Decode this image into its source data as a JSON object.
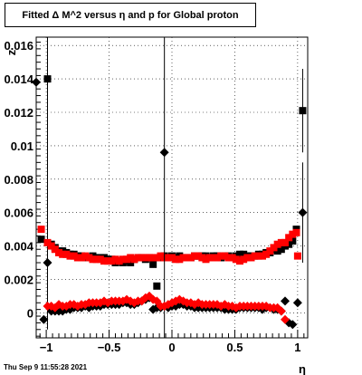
{
  "title": "Fitted Δ M^2 versus η and p for Global proton",
  "footer": "Thu Sep  9 11:55:28 2021",
  "chart_data": {
    "type": "scatter",
    "title": "Fitted Δ M^2 versus η and p for Global proton",
    "xlabel": "η",
    "ylabel": "z",
    "xlim": [
      -1.08,
      1.08
    ],
    "ylim": [
      -0.0015,
      0.0165
    ],
    "grid": true,
    "x_ticks": [
      -1,
      -0.5,
      0,
      0.5,
      1
    ],
    "x_tick_labels": [
      "−1",
      "−0.5",
      "0",
      "0.5",
      "1"
    ],
    "y_ticks": [
      0,
      0.002,
      0.004,
      0.006,
      0.008,
      0.01,
      0.012,
      0.014,
      0.016
    ],
    "y_tick_labels": [
      "0",
      "0.002",
      "0.004",
      "0.006",
      "0.008",
      "0.01",
      "0.012",
      "0.014",
      "0.016"
    ],
    "series": [
      {
        "marker": "square",
        "color": "#000000",
        "x": [
          -1.04,
          -0.99,
          -0.96,
          -0.93,
          -0.9,
          -0.87,
          -0.84,
          -0.81,
          -0.78,
          -0.75,
          -0.72,
          -0.69,
          -0.66,
          -0.63,
          -0.6,
          -0.57,
          -0.54,
          -0.51,
          -0.48,
          -0.45,
          -0.42,
          -0.39,
          -0.36,
          -0.33,
          -0.3,
          -0.27,
          -0.24,
          -0.21,
          -0.18,
          -0.15,
          -0.12,
          -0.09,
          -0.06,
          -0.03,
          0.0,
          0.03,
          0.06,
          0.09,
          0.12,
          0.15,
          0.18,
          0.21,
          0.24,
          0.27,
          0.3,
          0.33,
          0.36,
          0.39,
          0.42,
          0.45,
          0.48,
          0.51,
          0.54,
          0.57,
          0.6,
          0.63,
          0.66,
          0.69,
          0.72,
          0.75,
          0.78,
          0.81,
          0.84,
          0.87,
          0.9,
          0.93,
          0.96,
          0.99,
          1.04
        ],
        "y": [
          0.0044,
          0.014,
          0.0041,
          0.0039,
          0.0037,
          0.0037,
          0.0036,
          0.0035,
          0.0035,
          0.0034,
          0.0034,
          0.0033,
          0.0033,
          0.0034,
          0.0033,
          0.0033,
          0.0033,
          0.0032,
          0.0032,
          0.003,
          0.0031,
          0.003,
          0.0031,
          0.003,
          0.0032,
          0.0033,
          0.0033,
          0.0032,
          0.0033,
          0.0029,
          0.0016,
          0.0033,
          0.0034,
          0.0033,
          0.0034,
          0.0033,
          0.0034,
          0.0033,
          0.0033,
          0.0033,
          0.0034,
          0.0034,
          0.0034,
          0.0034,
          0.0033,
          0.0034,
          0.0034,
          0.0033,
          0.0034,
          0.0034,
          0.0033,
          0.0034,
          0.0035,
          0.0035,
          0.0034,
          0.0034,
          0.0034,
          0.0035,
          0.0035,
          0.0036,
          0.0036,
          0.0038,
          0.0037,
          0.0038,
          0.004,
          0.0041,
          0.0043,
          0.005,
          0.0121
        ],
        "yerr": [
          0.0002,
          0.015,
          0.0002,
          0.0002,
          0.0002,
          0.0002,
          0.0002,
          0.0002,
          0.0002,
          0.0002,
          0.0002,
          0.0002,
          0.0002,
          0.0002,
          0.0002,
          0.0002,
          0.0002,
          0.0002,
          0.0002,
          0.0002,
          0.0002,
          0.0002,
          0.0002,
          0.0002,
          0.0002,
          0.0002,
          0.0002,
          0.0002,
          0.0002,
          0.0002,
          0.0002,
          0.0002,
          0.0002,
          0.0002,
          0.0002,
          0.0002,
          0.0002,
          0.0002,
          0.0002,
          0.0002,
          0.0002,
          0.0002,
          0.0002,
          0.0002,
          0.0002,
          0.0002,
          0.0002,
          0.0002,
          0.0002,
          0.0002,
          0.0002,
          0.0002,
          0.0002,
          0.0002,
          0.0002,
          0.0002,
          0.0002,
          0.0002,
          0.0002,
          0.0002,
          0.0002,
          0.0002,
          0.0002,
          0.0002,
          0.0002,
          0.0002,
          0.0002,
          0.0002,
          0.0025
        ]
      },
      {
        "marker": "square",
        "color": "#ff0000",
        "x": [
          -1.04,
          -0.99,
          -0.96,
          -0.93,
          -0.9,
          -0.87,
          -0.84,
          -0.81,
          -0.78,
          -0.75,
          -0.72,
          -0.69,
          -0.66,
          -0.63,
          -0.6,
          -0.57,
          -0.54,
          -0.51,
          -0.48,
          -0.45,
          -0.42,
          -0.39,
          -0.36,
          -0.33,
          -0.3,
          -0.27,
          -0.24,
          -0.21,
          -0.18,
          -0.15,
          -0.12,
          -0.09,
          -0.06,
          -0.03,
          0.0,
          0.03,
          0.06,
          0.09,
          0.12,
          0.15,
          0.18,
          0.21,
          0.24,
          0.27,
          0.3,
          0.33,
          0.36,
          0.39,
          0.42,
          0.45,
          0.48,
          0.51,
          0.54,
          0.57,
          0.6,
          0.63,
          0.66,
          0.69,
          0.72,
          0.75,
          0.78,
          0.81,
          0.84,
          0.87,
          0.9,
          0.93,
          0.96,
          0.99,
          1.0
        ],
        "y": [
          0.005,
          0.0042,
          0.004,
          0.0038,
          0.0036,
          0.0035,
          0.0035,
          0.0034,
          0.0034,
          0.0033,
          0.0033,
          0.0034,
          0.0033,
          0.0032,
          0.0032,
          0.0032,
          0.0031,
          0.0031,
          0.0031,
          0.0032,
          0.0031,
          0.0032,
          0.0032,
          0.0033,
          0.0032,
          0.0033,
          0.0033,
          0.0033,
          0.0033,
          0.0033,
          0.0033,
          0.0034,
          0.0033,
          0.0033,
          0.0033,
          0.0032,
          0.0032,
          0.0033,
          0.0033,
          0.0033,
          0.0034,
          0.0034,
          0.0033,
          0.0032,
          0.0033,
          0.0033,
          0.0033,
          0.0034,
          0.0034,
          0.0033,
          0.0033,
          0.0032,
          0.0031,
          0.0032,
          0.0033,
          0.0033,
          0.0034,
          0.0034,
          0.0034,
          0.0035,
          0.0037,
          0.0039,
          0.0041,
          0.0042,
          0.0042,
          0.0045,
          0.0047,
          0.0048,
          0.0034
        ],
        "yerr": [
          0.0002,
          0.0002,
          0.0002,
          0.0002,
          0.0002,
          0.0002,
          0.0002,
          0.0002,
          0.0002,
          0.0002,
          0.0002,
          0.0002,
          0.0002,
          0.0002,
          0.0002,
          0.0002,
          0.0002,
          0.0002,
          0.0002,
          0.0002,
          0.0002,
          0.0002,
          0.0002,
          0.0002,
          0.0002,
          0.0002,
          0.0002,
          0.0002,
          0.0002,
          0.0002,
          0.0002,
          0.0002,
          0.0002,
          0.0002,
          0.0002,
          0.0002,
          0.0002,
          0.0002,
          0.0002,
          0.0002,
          0.0002,
          0.0002,
          0.0002,
          0.0002,
          0.0002,
          0.0002,
          0.0002,
          0.0002,
          0.0002,
          0.0002,
          0.0002,
          0.0002,
          0.0002,
          0.0002,
          0.0002,
          0.0002,
          0.0002,
          0.0002,
          0.0002,
          0.0002,
          0.0002,
          0.0002,
          0.0002,
          0.0002,
          0.0002,
          0.0002,
          0.0002,
          0.0002,
          0.0002
        ]
      },
      {
        "marker": "diamond",
        "color": "#000000",
        "x": [
          -1.08,
          -1.02,
          -0.99,
          -0.96,
          -0.93,
          -0.9,
          -0.87,
          -0.84,
          -0.81,
          -0.78,
          -0.75,
          -0.72,
          -0.69,
          -0.66,
          -0.63,
          -0.6,
          -0.57,
          -0.54,
          -0.51,
          -0.48,
          -0.45,
          -0.42,
          -0.39,
          -0.36,
          -0.33,
          -0.3,
          -0.27,
          -0.24,
          -0.21,
          -0.18,
          -0.15,
          -0.12,
          -0.09,
          -0.06,
          -0.03,
          0.0,
          0.03,
          0.06,
          0.09,
          0.12,
          0.15,
          0.18,
          0.21,
          0.24,
          0.27,
          0.3,
          0.33,
          0.36,
          0.39,
          0.42,
          0.45,
          0.48,
          0.51,
          0.54,
          0.57,
          0.6,
          0.63,
          0.66,
          0.69,
          0.72,
          0.75,
          0.78,
          0.81,
          0.84,
          0.87,
          0.9,
          0.93,
          0.96,
          1.0,
          1.04
        ],
        "y": [
          0.0138,
          -0.0004,
          0.003,
          0.0001,
          0.0001,
          0.0001,
          0.0001,
          0.0002,
          0.0002,
          0.0003,
          0.0003,
          0.0003,
          0.0004,
          0.0003,
          0.0004,
          0.0004,
          0.0004,
          0.0005,
          0.0005,
          0.0005,
          0.0005,
          0.0005,
          0.0006,
          0.0006,
          0.0005,
          0.0005,
          0.0006,
          0.0007,
          0.0008,
          0.0009,
          0.0002,
          0.0003,
          0.0003,
          0.0096,
          0.0003,
          0.0004,
          0.0004,
          0.0005,
          0.0005,
          0.0004,
          0.0004,
          0.0003,
          0.0003,
          0.0003,
          0.0003,
          0.0003,
          0.0003,
          0.0003,
          0.0003,
          0.0002,
          0.0002,
          0.0002,
          0.0002,
          0.0003,
          0.0003,
          0.0003,
          0.0003,
          0.0003,
          0.0003,
          0.0002,
          0.0003,
          0.0003,
          0.0002,
          0.0002,
          0.0001,
          0.0007,
          -0.0006,
          -0.0007,
          0.0006,
          0.006
        ],
        "yerr": [
          0.0008,
          0.0002,
          0.0002,
          0.0002,
          0.0002,
          0.0002,
          0.0002,
          0.0002,
          0.0002,
          0.0002,
          0.0002,
          0.0002,
          0.0002,
          0.0002,
          0.0002,
          0.0002,
          0.0002,
          0.0002,
          0.0002,
          0.0002,
          0.0002,
          0.0002,
          0.0002,
          0.0002,
          0.0002,
          0.0002,
          0.0002,
          0.0002,
          0.0002,
          0.0002,
          0.0002,
          0.0002,
          0.0002,
          0.017,
          0.0002,
          0.0002,
          0.0002,
          0.0002,
          0.0002,
          0.0002,
          0.0002,
          0.0002,
          0.0002,
          0.0002,
          0.0002,
          0.0002,
          0.0002,
          0.0002,
          0.0002,
          0.0002,
          0.0002,
          0.0002,
          0.0002,
          0.0002,
          0.0002,
          0.0002,
          0.0002,
          0.0002,
          0.0002,
          0.0002,
          0.0002,
          0.0002,
          0.0002,
          0.0002,
          0.0002,
          0.0002,
          0.0002,
          0.0002,
          0.0002,
          0.003
        ]
      },
      {
        "marker": "diamond",
        "color": "#ff0000",
        "x": [
          -0.99,
          -0.96,
          -0.93,
          -0.9,
          -0.87,
          -0.84,
          -0.81,
          -0.78,
          -0.75,
          -0.72,
          -0.69,
          -0.66,
          -0.63,
          -0.6,
          -0.57,
          -0.54,
          -0.51,
          -0.48,
          -0.45,
          -0.42,
          -0.39,
          -0.36,
          -0.33,
          -0.3,
          -0.27,
          -0.24,
          -0.21,
          -0.18,
          -0.15,
          -0.12,
          -0.09,
          -0.06,
          -0.03,
          0.0,
          0.03,
          0.06,
          0.09,
          0.12,
          0.15,
          0.18,
          0.21,
          0.24,
          0.27,
          0.3,
          0.33,
          0.36,
          0.39,
          0.42,
          0.45,
          0.48,
          0.51,
          0.54,
          0.57,
          0.6,
          0.63,
          0.66,
          0.69,
          0.72,
          0.75,
          0.78,
          0.81,
          0.84,
          0.87,
          0.9
        ],
        "y": [
          0.0004,
          0.0004,
          0.0003,
          0.0005,
          0.0004,
          0.0004,
          0.0005,
          0.0005,
          0.0004,
          0.0005,
          0.0005,
          0.0006,
          0.0006,
          0.0006,
          0.0006,
          0.0007,
          0.0006,
          0.0007,
          0.0007,
          0.0007,
          0.0007,
          0.0008,
          0.0007,
          0.0006,
          0.0007,
          0.0007,
          0.0009,
          0.001,
          0.0008,
          0.0007,
          0.0004,
          0.0004,
          0.0005,
          0.0006,
          0.0007,
          0.0008,
          0.0007,
          0.0006,
          0.0006,
          0.0005,
          0.0006,
          0.0005,
          0.0005,
          0.0005,
          0.0005,
          0.0005,
          0.0004,
          0.0005,
          0.0004,
          0.0004,
          0.0003,
          0.0004,
          0.0004,
          0.0004,
          0.0004,
          0.0004,
          0.0004,
          0.0004,
          0.0004,
          0.0003,
          0.0003,
          0.0003,
          0.0001,
          -0.0004
        ],
        "yerr": [
          0.0001,
          0.0001,
          0.0001,
          0.0001,
          0.0001,
          0.0001,
          0.0001,
          0.0001,
          0.0001,
          0.0001,
          0.0001,
          0.0001,
          0.0001,
          0.0001,
          0.0001,
          0.0001,
          0.0001,
          0.0001,
          0.0001,
          0.0001,
          0.0001,
          0.0001,
          0.0001,
          0.0001,
          0.0001,
          0.0001,
          0.0001,
          0.0001,
          0.0001,
          0.0001,
          0.0001,
          0.0001,
          0.0001,
          0.0001,
          0.0001,
          0.0001,
          0.0001,
          0.0001,
          0.0001,
          0.0001,
          0.0001,
          0.0001,
          0.0001,
          0.0001,
          0.0001,
          0.0001,
          0.0001,
          0.0001,
          0.0001,
          0.0001,
          0.0001,
          0.0001,
          0.0001,
          0.0001,
          0.0001,
          0.0001,
          0.0001,
          0.0001,
          0.0001,
          0.0001,
          0.0001,
          0.0001,
          0.0001,
          0.0001
        ]
      }
    ]
  }
}
